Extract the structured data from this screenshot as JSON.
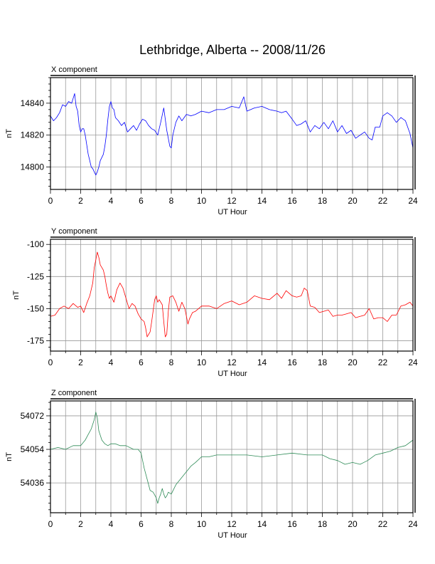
{
  "title": "Lethbridge, Alberta -- 2008/11/26",
  "chart_data": [
    {
      "type": "line",
      "title": "X component",
      "xlabel": "UT Hour",
      "ylabel": "nT",
      "xlim": [
        0,
        24
      ],
      "ylim": [
        14786,
        14856
      ],
      "xticks": [
        0,
        2,
        4,
        6,
        8,
        10,
        12,
        14,
        16,
        18,
        20,
        22,
        24
      ],
      "yticks": [
        14800,
        14820,
        14840
      ],
      "grid": true,
      "color": "#0000ff",
      "series": [
        {
          "x": [
            0,
            0.2,
            0.4,
            0.6,
            0.8,
            1,
            1.2,
            1.4,
            1.6,
            1.7,
            1.8,
            1.9,
            2,
            2.1,
            2.2,
            2.3,
            2.4,
            2.5,
            2.6,
            2.7,
            2.8,
            2.9,
            3,
            3.1,
            3.2,
            3.3,
            3.4,
            3.5,
            3.6,
            3.7,
            3.8,
            3.9,
            4,
            4.1,
            4.2,
            4.3,
            4.5,
            4.7,
            4.9,
            5.1,
            5.3,
            5.5,
            5.7,
            5.9,
            6.1,
            6.3,
            6.5,
            6.7,
            6.9,
            7.1,
            7.3,
            7.5,
            7.6,
            7.7,
            7.8,
            7.9,
            8,
            8.1,
            8.3,
            8.5,
            8.7,
            9,
            9.3,
            9.6,
            10,
            10.5,
            11,
            11.5,
            12,
            12.5,
            12.8,
            13,
            13.5,
            14,
            14.5,
            15,
            15.3,
            15.6,
            16,
            16.3,
            16.6,
            16.9,
            17.2,
            17.5,
            17.8,
            18.1,
            18.4,
            18.7,
            19,
            19.3,
            19.6,
            19.9,
            20.2,
            20.5,
            20.8,
            21.1,
            21.3,
            21.5,
            21.8,
            22,
            22.3,
            22.6,
            22.9,
            23.2,
            23.5,
            23.8,
            24
          ],
          "y": [
            14832,
            14829,
            14831,
            14834,
            14839,
            14838,
            14841,
            14840,
            14846,
            14838,
            14835,
            14826,
            14822,
            14824,
            14824,
            14820,
            14814,
            14808,
            14804,
            14800,
            14799,
            14797,
            14795,
            14797,
            14800,
            14804,
            14806,
            14808,
            14813,
            14820,
            14830,
            14838,
            14841,
            14837,
            14836,
            14831,
            14829,
            14826,
            14828,
            14822,
            14824,
            14826,
            14823,
            14827,
            14830,
            14829,
            14826,
            14824,
            14823,
            14820,
            14828,
            14837,
            14830,
            14823,
            14818,
            14813,
            14812,
            14820,
            14828,
            14832,
            14829,
            14833,
            14832,
            14833,
            14835,
            14834,
            14836,
            14836,
            14838,
            14837,
            14844,
            14835,
            14837,
            14838,
            14836,
            14835,
            14834,
            14835,
            14830,
            14826,
            14827,
            14829,
            14822,
            14826,
            14824,
            14828,
            14824,
            14829,
            14822,
            14826,
            14821,
            14823,
            14818,
            14820,
            14822,
            14818,
            14817,
            14825,
            14825,
            14832,
            14834,
            14832,
            14828,
            14831,
            14829,
            14821,
            14812
          ]
        }
      ]
    },
    {
      "type": "line",
      "title": "Y component",
      "xlabel": "UT Hour",
      "ylabel": "nT",
      "xlim": [
        0,
        24
      ],
      "ylim": [
        -183,
        -96
      ],
      "xticks": [
        0,
        2,
        4,
        6,
        8,
        10,
        12,
        14,
        16,
        18,
        20,
        22,
        24
      ],
      "yticks": [
        -100,
        -125,
        -150,
        -175
      ],
      "grid": true,
      "color": "#ff0000",
      "series": [
        {
          "x": [
            0,
            0.3,
            0.6,
            0.9,
            1.2,
            1.5,
            1.8,
            2,
            2.2,
            2.4,
            2.6,
            2.8,
            2.9,
            3,
            3.1,
            3.2,
            3.3,
            3.4,
            3.5,
            3.6,
            3.7,
            3.8,
            3.9,
            4,
            4.2,
            4.4,
            4.6,
            4.8,
            5,
            5.2,
            5.4,
            5.6,
            5.8,
            6,
            6.2,
            6.3,
            6.4,
            6.5,
            6.6,
            6.7,
            6.9,
            7,
            7.1,
            7.2,
            7.4,
            7.5,
            7.6,
            7.7,
            7.8,
            7.9,
            8.1,
            8.3,
            8.5,
            8.7,
            8.9,
            9,
            9.1,
            9.2,
            9.4,
            9.6,
            9.8,
            10,
            10.5,
            11,
            11.5,
            12,
            12.5,
            13,
            13.5,
            14,
            14.5,
            15,
            15.3,
            15.6,
            16,
            16.3,
            16.6,
            16.8,
            17,
            17.2,
            17.5,
            17.8,
            18.1,
            18.4,
            18.7,
            19,
            19.3,
            19.6,
            19.9,
            20.2,
            20.5,
            20.8,
            21.1,
            21.4,
            21.7,
            22,
            22.3,
            22.6,
            22.9,
            23.2,
            23.5,
            23.8,
            24
          ],
          "y": [
            -156,
            -155,
            -150,
            -148,
            -150,
            -146,
            -149,
            -148,
            -153,
            -146,
            -140,
            -130,
            -118,
            -112,
            -106,
            -110,
            -116,
            -118,
            -120,
            -125,
            -132,
            -138,
            -142,
            -140,
            -145,
            -135,
            -130,
            -134,
            -142,
            -150,
            -146,
            -148,
            -154,
            -158,
            -160,
            -165,
            -172,
            -170,
            -168,
            -160,
            -143,
            -140,
            -145,
            -143,
            -147,
            -160,
            -172,
            -170,
            -152,
            -141,
            -140,
            -145,
            -152,
            -145,
            -150,
            -156,
            -162,
            -158,
            -153,
            -152,
            -150,
            -148,
            -148,
            -150,
            -146,
            -144,
            -147,
            -145,
            -140,
            -142,
            -143,
            -138,
            -142,
            -136,
            -140,
            -141,
            -140,
            -134,
            -136,
            -148,
            -149,
            -153,
            -152,
            -151,
            -156,
            -155,
            -155,
            -154,
            -153,
            -157,
            -156,
            -155,
            -150,
            -158,
            -157,
            -157,
            -160,
            -155,
            -155,
            -148,
            -147,
            -145,
            -148
          ]
        }
      ]
    },
    {
      "type": "line",
      "title": "Z component",
      "xlabel": "UT Hour",
      "ylabel": "nT",
      "xlim": [
        0,
        24
      ],
      "ylim": [
        54020,
        54080
      ],
      "xticks": [
        0,
        2,
        4,
        6,
        8,
        10,
        12,
        14,
        16,
        18,
        20,
        22,
        24
      ],
      "yticks": [
        54036,
        54054,
        54072
      ],
      "grid": true,
      "color": "#2e8b57",
      "series": [
        {
          "x": [
            0,
            0.5,
            1,
            1.5,
            2,
            2.3,
            2.5,
            2.7,
            2.9,
            3,
            3.1,
            3.2,
            3.4,
            3.6,
            3.8,
            4,
            4.3,
            4.6,
            5,
            5.5,
            5.8,
            6,
            6.2,
            6.4,
            6.6,
            6.8,
            7,
            7.1,
            7.2,
            7.3,
            7.4,
            7.5,
            7.6,
            7.7,
            7.8,
            8,
            8.3,
            8.6,
            9,
            9.3,
            9.6,
            10,
            10.5,
            11,
            12,
            13,
            14,
            15,
            16,
            17,
            18,
            18.5,
            19,
            19.5,
            20,
            20.5,
            21,
            21.5,
            22,
            22.5,
            23,
            23.5,
            24
          ],
          "y": [
            54054,
            54055,
            54054,
            54056,
            54056,
            54059,
            54062,
            54065,
            54070,
            54074,
            54071,
            54064,
            54059,
            54057,
            54056,
            54057,
            54057,
            54056,
            54056,
            54054,
            54054,
            54052,
            54044,
            54038,
            54032,
            54031,
            54028,
            54025,
            54028,
            54030,
            54033,
            54030,
            54028,
            54029,
            54031,
            54030,
            54035,
            54038,
            54042,
            54045,
            54047,
            54050,
            54050,
            54051,
            54051,
            54051,
            54050,
            54051,
            54052,
            54051,
            54051,
            54049,
            54048,
            54046,
            54047,
            54046,
            54048,
            54051,
            54052,
            54053,
            54055,
            54056,
            54059
          ]
        }
      ]
    }
  ]
}
